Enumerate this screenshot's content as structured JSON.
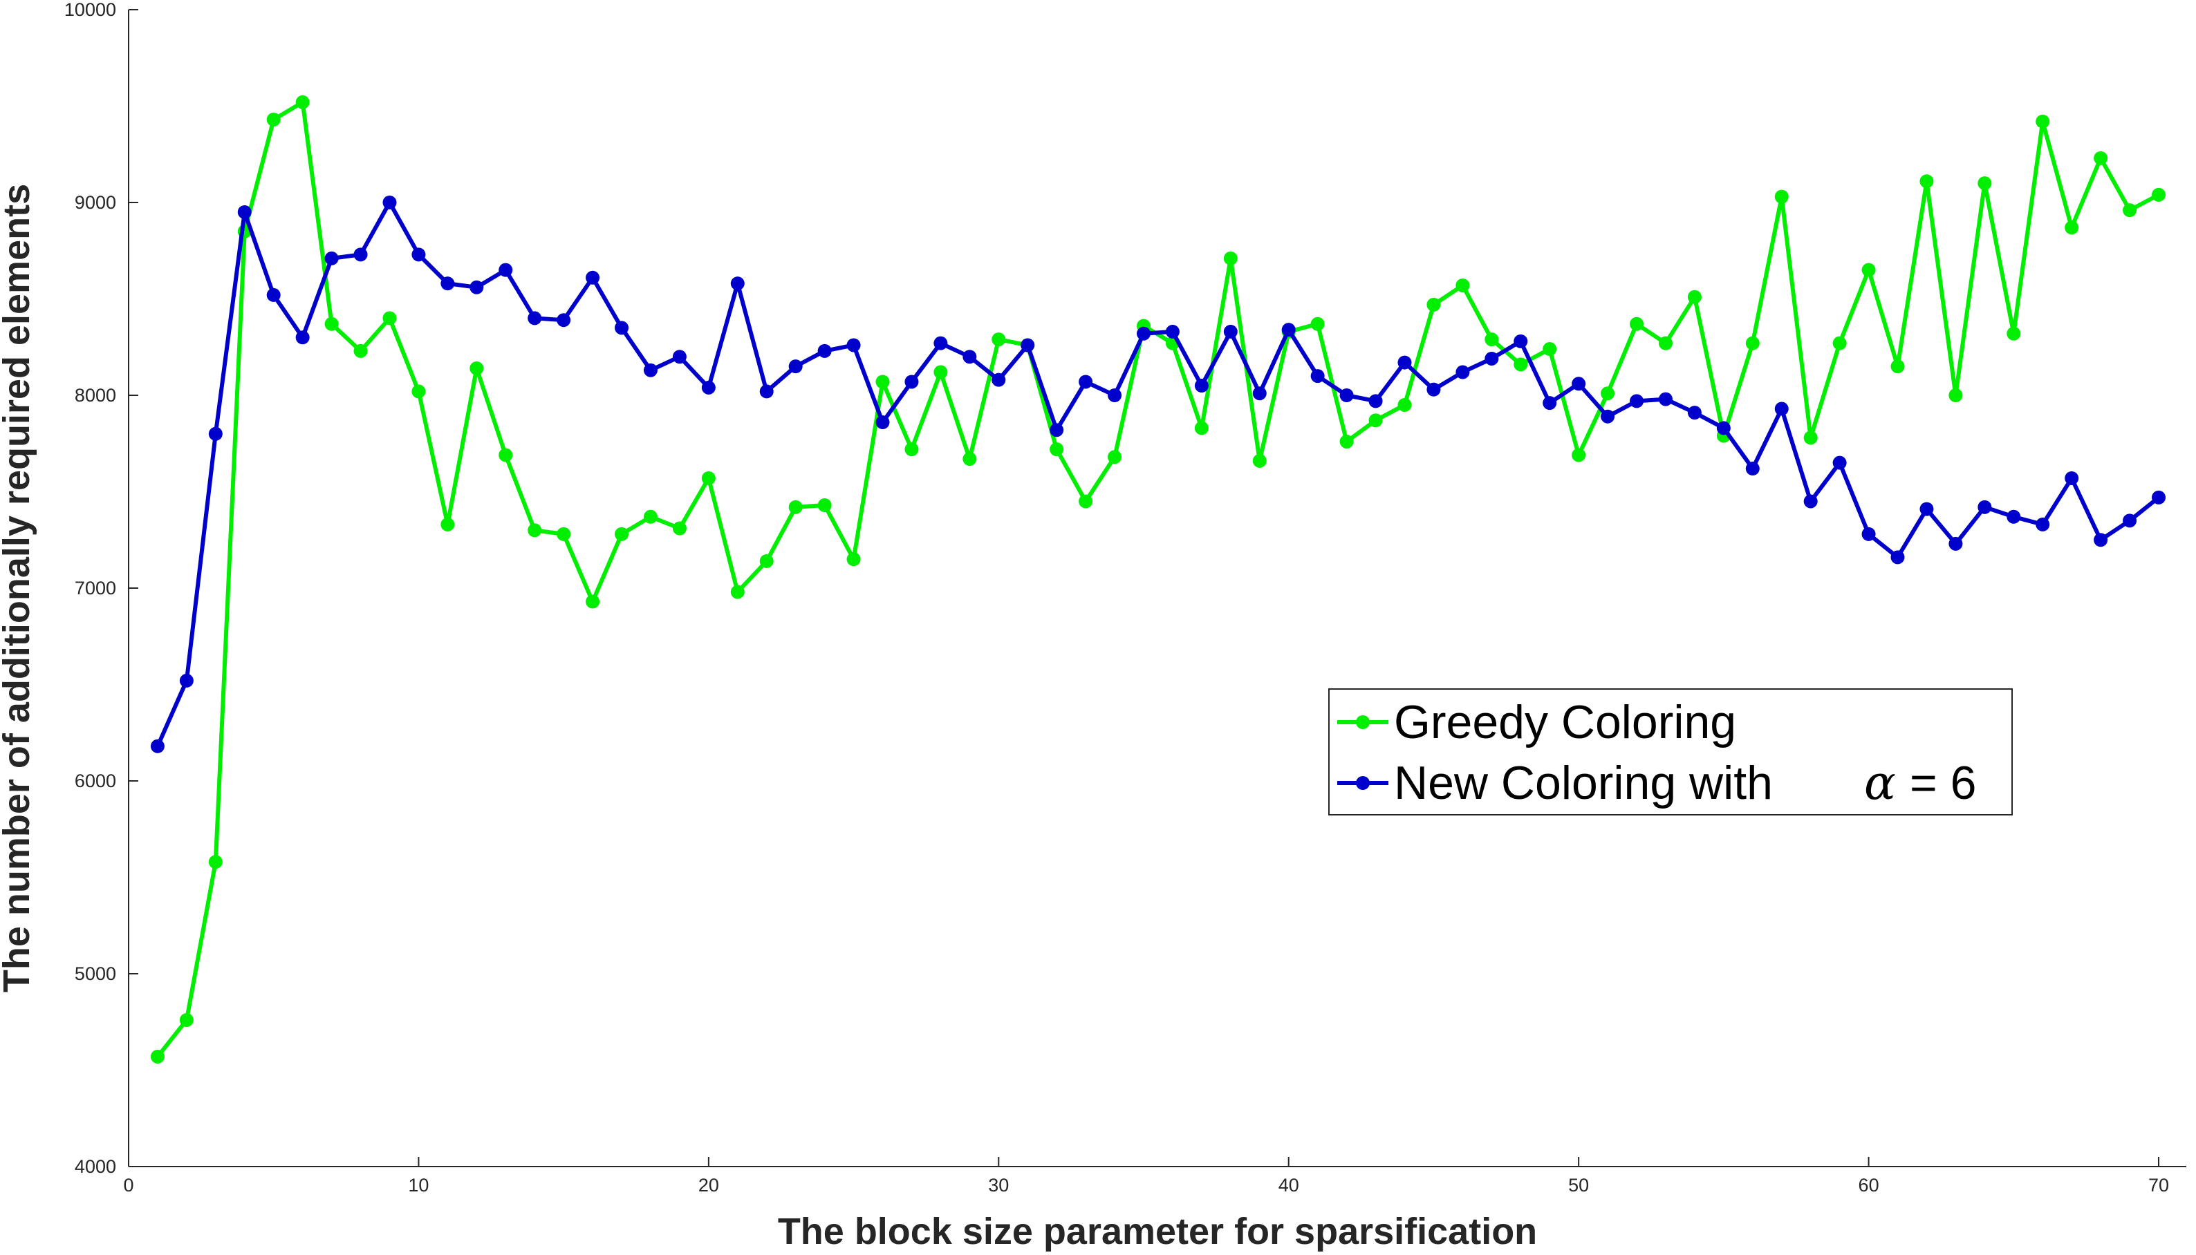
{
  "chart_data": {
    "type": "line",
    "title": "",
    "xlabel": "The block size parameter for sparsification",
    "ylabel": "The number of additionally required elements",
    "xlim": [
      0,
      70
    ],
    "ylim": [
      4000,
      10000
    ],
    "xticks": [
      0,
      10,
      20,
      30,
      40,
      50,
      60,
      70
    ],
    "yticks": [
      4000,
      5000,
      6000,
      7000,
      8000,
      9000,
      10000
    ],
    "xtick_labels": [
      "0",
      "10",
      "20",
      "30",
      "40",
      "50",
      "60",
      "70"
    ],
    "ytick_labels": [
      "4000",
      "5000",
      "6000",
      "7000",
      "8000",
      "9000",
      "10000"
    ],
    "grid": false,
    "legend_position": "center-right",
    "x": [
      1,
      2,
      3,
      4,
      5,
      6,
      7,
      8,
      9,
      10,
      11,
      12,
      13,
      14,
      15,
      16,
      17,
      18,
      19,
      20,
      21,
      22,
      23,
      24,
      25,
      26,
      27,
      28,
      29,
      30,
      31,
      32,
      33,
      34,
      35,
      36,
      37,
      38,
      39,
      40,
      41,
      42,
      43,
      44,
      45,
      46,
      47,
      48,
      49,
      50,
      51,
      52,
      53,
      54,
      55,
      56,
      57,
      58,
      59,
      60,
      61,
      62,
      63,
      64,
      65,
      66,
      67,
      68,
      69,
      70
    ],
    "series": [
      {
        "name": "Greedy Coloring",
        "color": "#00ee00",
        "values": [
          4570,
          4760,
          5580,
          8850,
          9430,
          9520,
          8370,
          8230,
          8400,
          8020,
          7330,
          8140,
          7690,
          7300,
          7280,
          6930,
          7280,
          7370,
          7310,
          7570,
          6980,
          7140,
          7420,
          7430,
          7150,
          8070,
          7720,
          8120,
          7670,
          8290,
          8260,
          7720,
          7450,
          7680,
          8360,
          8270,
          7830,
          8710,
          7660,
          8330,
          8370,
          7760,
          7870,
          7950,
          8470,
          8570,
          8290,
          8160,
          8240,
          7690,
          8010,
          8370,
          8270,
          8510,
          7790,
          8270,
          9030,
          7780,
          8270,
          8650,
          8150,
          9110,
          8000,
          9100,
          8320,
          9420,
          8870,
          9230,
          8960,
          9040
        ]
      },
      {
        "name": "New Coloring with α = 6",
        "color": "#0000cc",
        "values": [
          6180,
          6520,
          7800,
          8950,
          8520,
          8300,
          8710,
          8730,
          9000,
          8730,
          8580,
          8560,
          8650,
          8400,
          8390,
          8610,
          8350,
          8130,
          8200,
          8040,
          8580,
          8020,
          8150,
          8230,
          8260,
          7860,
          8070,
          8270,
          8200,
          8080,
          8260,
          7820,
          8070,
          8000,
          8320,
          8330,
          8050,
          8330,
          8010,
          8340,
          8100,
          8000,
          7970,
          8170,
          8030,
          8120,
          8190,
          8280,
          7960,
          8060,
          7890,
          7970,
          7980,
          7910,
          7830,
          7620,
          7930,
          7450,
          7650,
          7280,
          7160,
          7410,
          7230,
          7420,
          7370,
          7330,
          7570,
          7250,
          7350,
          7470
        ]
      }
    ],
    "legend": {
      "greedy_label": "Greedy Coloring",
      "new_label": "New Coloring with",
      "alpha_symbol": "α",
      "alpha_value": "= 6"
    }
  }
}
